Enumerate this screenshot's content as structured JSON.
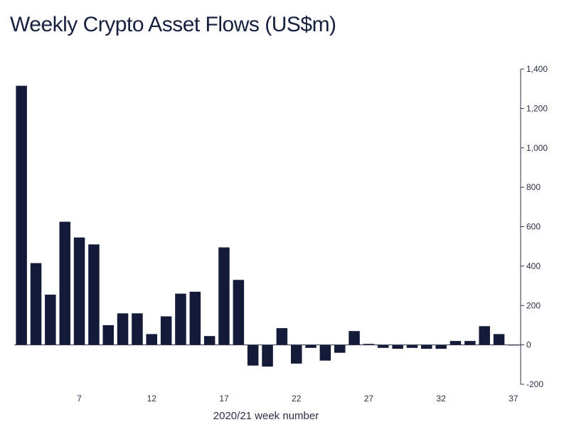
{
  "chart_data": {
    "type": "bar",
    "title": "Weekly Crypto Asset Flows (US$m)",
    "xlabel": "2020/21 week number",
    "ylabel": "",
    "ylim": [
      -200,
      1400
    ],
    "yticks": [
      1400,
      1200,
      1000,
      800,
      600,
      400,
      200,
      0,
      -200
    ],
    "ytick_labels": [
      "1,400",
      "1,200",
      "1,000",
      "800",
      "600",
      "400",
      "200",
      "0",
      "-200"
    ],
    "y_axis_position": "right",
    "grid": false,
    "bar_color": "#141b38",
    "categories": [
      3,
      4,
      5,
      6,
      7,
      8,
      9,
      10,
      11,
      12,
      13,
      14,
      15,
      16,
      17,
      18,
      19,
      20,
      21,
      22,
      23,
      24,
      25,
      26,
      27,
      28,
      29,
      30,
      31,
      32,
      33,
      34,
      35,
      36,
      37
    ],
    "xtick_labels": [
      "7",
      "12",
      "17",
      "22",
      "27",
      "32",
      "37"
    ],
    "values": [
      1315,
      415,
      255,
      625,
      545,
      510,
      100,
      160,
      160,
      55,
      145,
      260,
      270,
      45,
      495,
      330,
      -105,
      -110,
      85,
      -95,
      -15,
      -80,
      -40,
      70,
      5,
      -15,
      -20,
      -15,
      -20,
      -20,
      20,
      20,
      95,
      55,
      0
    ]
  }
}
